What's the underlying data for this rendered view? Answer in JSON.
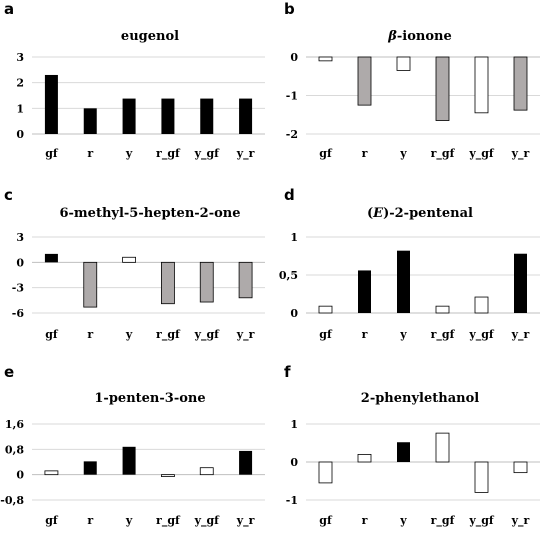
{
  "chart_data": [
    {
      "panel": "a",
      "title": "eugenol",
      "type": "bar",
      "categories": [
        "gf",
        "r",
        "y",
        "r_gf",
        "y_gf",
        "y_r"
      ],
      "values": [
        2.3,
        1.0,
        1.38,
        1.38,
        1.38,
        1.38
      ],
      "fills": [
        "black",
        "black",
        "black",
        "black",
        "black",
        "black"
      ],
      "ylim": [
        0,
        3
      ],
      "yticks": [
        0,
        1,
        2,
        3
      ],
      "ytick_labels": [
        "0",
        "1",
        "2",
        "3"
      ],
      "grid": true
    },
    {
      "panel": "b",
      "title": "β-ionone",
      "title_italic": "β",
      "title_rest": "-ionone",
      "type": "bar",
      "categories": [
        "gf",
        "r",
        "y",
        "r_gf",
        "y_gf",
        "y_r"
      ],
      "values": [
        -0.1,
        -1.25,
        -0.35,
        -1.65,
        -1.45,
        -1.38
      ],
      "fills": [
        "white",
        "gray",
        "white",
        "gray",
        "white",
        "gray"
      ],
      "ylim": [
        -2,
        0
      ],
      "yticks": [
        -2,
        -1,
        0
      ],
      "ytick_labels": [
        "-2",
        "-1",
        "0"
      ],
      "grid": true
    },
    {
      "panel": "c",
      "title": "6-methyl-5-hepten-2-one",
      "type": "bar",
      "categories": [
        "gf",
        "r",
        "y",
        "r_gf",
        "y_gf",
        "y_r"
      ],
      "values": [
        1.0,
        -5.3,
        0.6,
        -4.9,
        -4.7,
        -4.2
      ],
      "fills": [
        "black",
        "gray",
        "white",
        "gray",
        "gray",
        "gray"
      ],
      "ylim": [
        -6,
        3
      ],
      "yticks": [
        -6,
        -3,
        0,
        3
      ],
      "ytick_labels": [
        "-6",
        "-3",
        "0",
        "3"
      ],
      "grid": true
    },
    {
      "panel": "d",
      "title": "(E)-2-pentenal",
      "title_pre": "(",
      "title_italic": "E",
      "title_rest": ")-2-pentenal",
      "type": "bar",
      "categories": [
        "gf",
        "r",
        "y",
        "r_gf",
        "y_gf",
        "y_r"
      ],
      "values": [
        0.09,
        0.56,
        0.82,
        0.09,
        0.21,
        0.78
      ],
      "fills": [
        "white",
        "black",
        "black",
        "white",
        "white",
        "black"
      ],
      "ylim": [
        0,
        1
      ],
      "yticks": [
        0,
        0.5,
        1
      ],
      "ytick_labels": [
        "0",
        "0,5",
        "1"
      ],
      "grid": true
    },
    {
      "panel": "e",
      "title": "1-penten-3-one",
      "type": "bar",
      "categories": [
        "gf",
        "r",
        "y",
        "r_gf",
        "y_gf",
        "y_r"
      ],
      "values": [
        0.12,
        0.42,
        0.88,
        -0.06,
        0.22,
        0.75
      ],
      "fills": [
        "white",
        "black",
        "black",
        "white",
        "white",
        "black"
      ],
      "ylim": [
        -0.8,
        1.6
      ],
      "yticks": [
        -0.8,
        0,
        0.8,
        1.6
      ],
      "ytick_labels": [
        "-0,8",
        "0",
        "0,8",
        "1,6"
      ],
      "grid": true
    },
    {
      "panel": "f",
      "title": "2-phenylethanol",
      "type": "bar",
      "categories": [
        "gf",
        "r",
        "y",
        "r_gf",
        "y_gf",
        "y_r"
      ],
      "values": [
        -0.55,
        0.2,
        0.52,
        0.76,
        -0.8,
        -0.28
      ],
      "fills": [
        "white",
        "white",
        "black",
        "white",
        "white",
        "white"
      ],
      "ylim": [
        -1,
        1
      ],
      "yticks": [
        -1,
        0,
        1
      ],
      "ytick_labels": [
        "-1",
        "0",
        "1"
      ],
      "grid": true
    }
  ],
  "colors": {
    "black": "#000000",
    "gray": "#aeaaaa",
    "white": "#ffffff",
    "outline": "#000000"
  }
}
